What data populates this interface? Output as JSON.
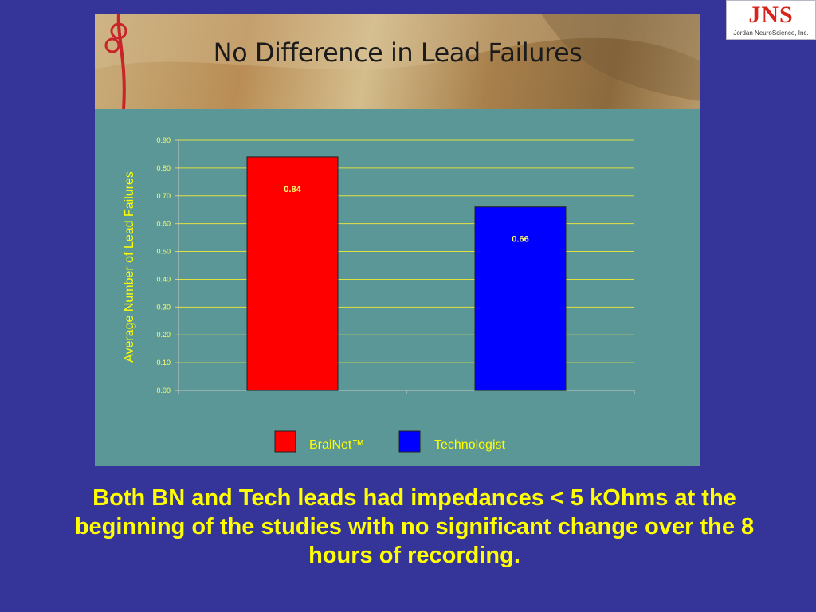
{
  "logo": {
    "mark": "JNS",
    "subtitle": "Jordan NeuroScience, Inc."
  },
  "caption": "Both BN and Tech leads had impedances < 5 kOhms at the beginning of the studies with no significant change over the 8 hours of recording.",
  "colors": {
    "background": "#343499",
    "panel": "#5b9797",
    "text_yellow": "#ffff00",
    "gridline": "#e0e040"
  },
  "chart_data": {
    "type": "bar",
    "title": "No Difference in Lead Failures",
    "ylabel": "Average Number of Lead Failures",
    "xlabel": "",
    "categories": [
      "BraiNet™",
      "Technologist"
    ],
    "values": [
      0.84,
      0.66
    ],
    "data_labels": [
      "0.84",
      "0.66"
    ],
    "bar_colors": [
      "#ff0000",
      "#0000ff"
    ],
    "ylim": [
      0,
      0.9
    ],
    "yticks": [
      "0.00",
      "0.10",
      "0.20",
      "0.30",
      "0.40",
      "0.50",
      "0.60",
      "0.70",
      "0.80",
      "0.90"
    ],
    "grid": true,
    "legend": {
      "placement": "bottom",
      "entries": [
        "BraiNet™",
        "Technologist"
      ]
    }
  }
}
